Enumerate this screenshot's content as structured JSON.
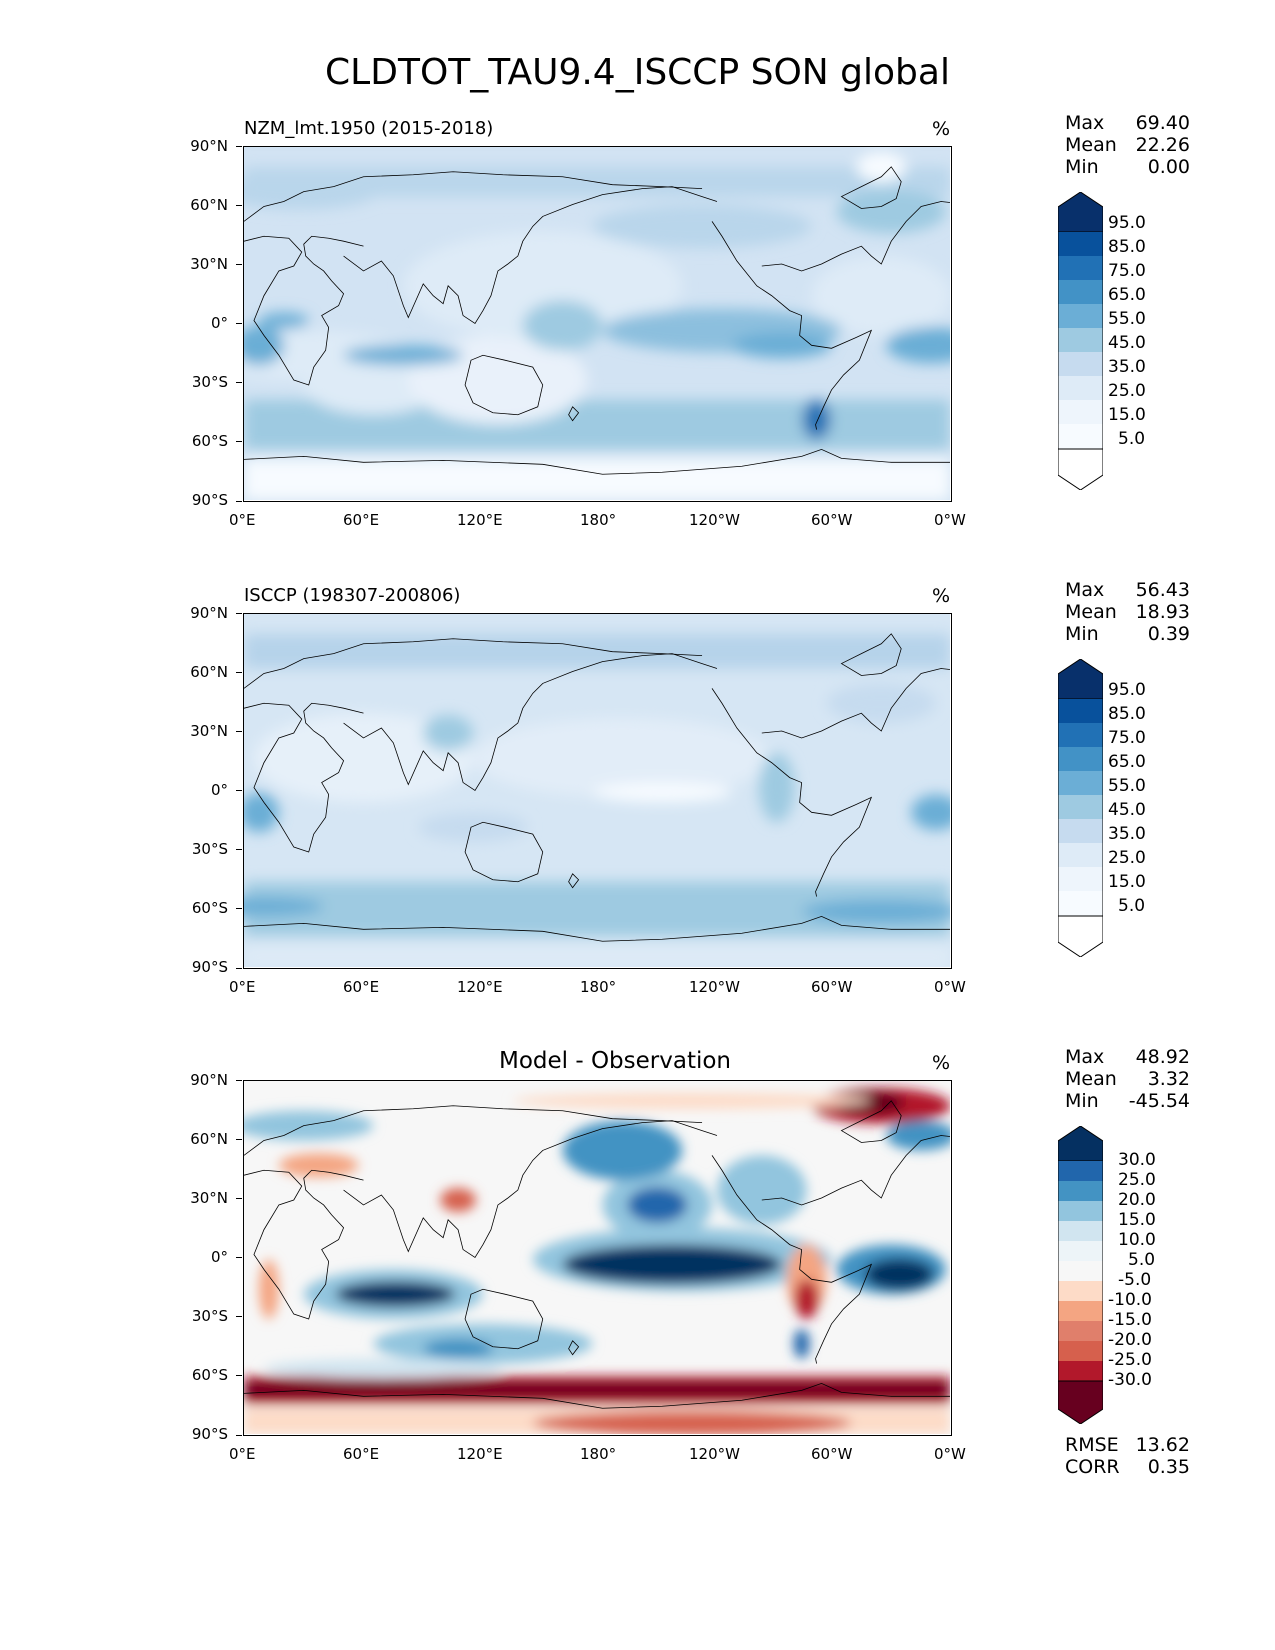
{
  "title": "CLDTOT_TAU9.4_ISCCP SON global",
  "lat_ticks": [
    "90°N",
    "60°N",
    "30°N",
    "0°",
    "30°S",
    "60°S",
    "90°S"
  ],
  "lon_ticks": [
    "0°E",
    "60°E",
    "120°E",
    "180°",
    "120°W",
    "60°W",
    "0°W"
  ],
  "colors": {
    "blues": [
      "#f7fbff",
      "#deebf7",
      "#c6dbef",
      "#9ecae1",
      "#6baed6",
      "#4292c6",
      "#2171b5",
      "#08519c",
      "#08306b"
    ],
    "diverging": [
      "#67001f",
      "#b2182b",
      "#d6604d",
      "#f4a582",
      "#fddbc7",
      "#f7f7f7",
      "#d1e5f0",
      "#92c5de",
      "#4393c3",
      "#2166ac",
      "#053061"
    ]
  },
  "panels": [
    {
      "id": "model",
      "title": "NZM_lmt.1950 (2015-2018)",
      "units": "%",
      "stats": [
        {
          "name": "Max",
          "value": "69.40"
        },
        {
          "name": "Mean",
          "value": "22.26"
        },
        {
          "name": "Min",
          "value": "0.00"
        }
      ],
      "colorbar_labels": [
        "95.0",
        "85.0",
        "75.0",
        "65.0",
        "55.0",
        "45.0",
        "35.0",
        "25.0",
        "15.0",
        "5.0"
      ]
    },
    {
      "id": "obs",
      "title": "ISCCP (198307-200806)",
      "units": "%",
      "stats": [
        {
          "name": "Max",
          "value": "56.43"
        },
        {
          "name": "Mean",
          "value": "18.93"
        },
        {
          "name": "Min",
          "value": "0.39"
        }
      ],
      "colorbar_labels": [
        "95.0",
        "85.0",
        "75.0",
        "65.0",
        "55.0",
        "45.0",
        "35.0",
        "25.0",
        "15.0",
        "5.0"
      ]
    },
    {
      "id": "diff",
      "title": "Model - Observation",
      "units": "%",
      "stats": [
        {
          "name": "Max",
          "value": "48.92"
        },
        {
          "name": "Mean",
          "value": "3.32"
        },
        {
          "name": "Min",
          "value": "-45.54"
        }
      ],
      "colorbar_labels": [
        "30.0",
        "25.0",
        "20.0",
        "15.0",
        "10.0",
        "5.0",
        "-5.0",
        "-10.0",
        "-15.0",
        "-20.0",
        "-25.0",
        "-30.0"
      ],
      "extra_stats": [
        {
          "name": "RMSE",
          "value": "13.62"
        },
        {
          "name": "CORR",
          "value": "0.35"
        }
      ]
    }
  ]
}
